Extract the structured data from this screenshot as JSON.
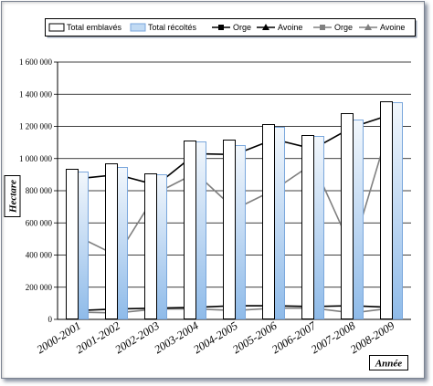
{
  "chart_data": {
    "type": "bar",
    "categories": [
      "2000-2001",
      "2001-2002",
      "2002-2003",
      "2003-2004",
      "2004-2005",
      "2005-2006",
      "2006-2007",
      "2007-2008",
      "2008-2009"
    ],
    "xlabel": "Année",
    "ylabel": "Hectare",
    "ylim": [
      0,
      1600000
    ],
    "yticks": [
      0,
      200000,
      400000,
      600000,
      800000,
      1000000,
      1200000,
      1400000,
      1600000
    ],
    "ytick_labels": [
      "0",
      "200 000",
      "400 000",
      "600 000",
      "800 000",
      "1 000 000",
      "1 200 000",
      "1 400 000",
      "1 600 000"
    ],
    "grid": true,
    "legend_position": "top",
    "series": [
      {
        "name": "Total emblavés",
        "type": "bar",
        "color": "#ffffff",
        "stroke": "#000000",
        "values": [
          935000,
          970000,
          910000,
          1110000,
          1115000,
          1215000,
          1145000,
          1285000,
          1355000
        ]
      },
      {
        "name": "Total récoltés",
        "type": "bar",
        "color": "#8fbbe9",
        "stroke": "#7aa7dc",
        "values": [
          920000,
          945000,
          900000,
          1105000,
          1085000,
          1195000,
          1140000,
          1240000,
          1350000
        ]
      },
      {
        "name": "Orge",
        "type": "line",
        "color": "#000000",
        "marker": "square",
        "values": [
          875000,
          900000,
          835000,
          1030000,
          1025000,
          1120000,
          1060000,
          1195000,
          1275000
        ]
      },
      {
        "name": "Avoine",
        "type": "line",
        "color": "#000000",
        "marker": "triangle",
        "values": [
          55000,
          65000,
          70000,
          75000,
          85000,
          85000,
          80000,
          85000,
          75000
        ]
      },
      {
        "name": "Orge",
        "type": "line",
        "color": "#808080",
        "marker": "square",
        "values": [
          515000,
          395000,
          785000,
          910000,
          685000,
          805000,
          970000,
          430000,
          1245000
        ]
      },
      {
        "name": "Avoine",
        "type": "line",
        "color": "#808080",
        "marker": "triangle",
        "values": [
          45000,
          40000,
          65000,
          65000,
          55000,
          70000,
          70000,
          40000,
          70000
        ]
      }
    ]
  }
}
